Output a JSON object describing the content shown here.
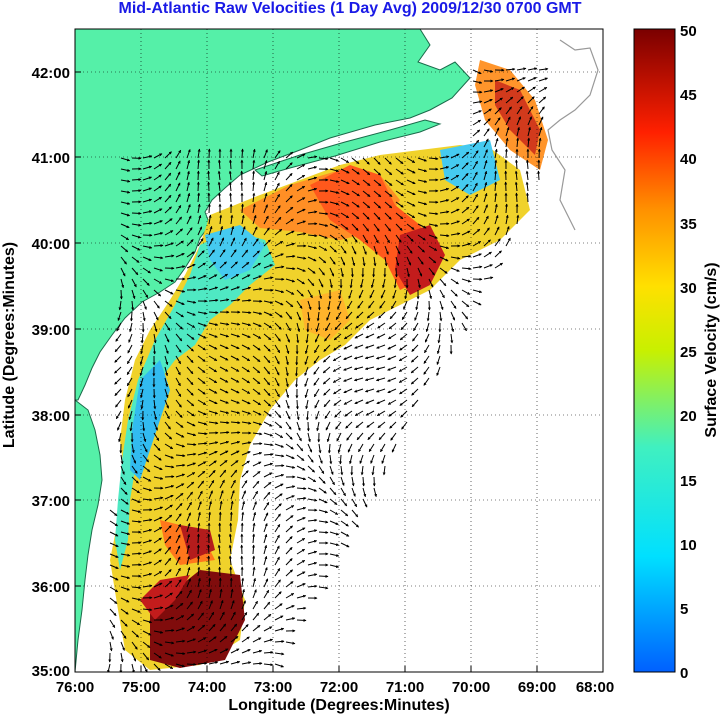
{
  "title": "Mid-Atlantic Raw Velocities (1 Day Avg) 2009/12/30 0700 GMT",
  "map": {
    "x_axis_label": "Longitude (Degrees:Minutes)",
    "y_axis_label": "Latitude (Degrees:Minutes)",
    "x_ticks": [
      "76:00",
      "75:00",
      "74:00",
      "73:00",
      "72:00",
      "71:00",
      "70:00",
      "69:00",
      "68:00"
    ],
    "y_ticks": [
      "42:00",
      "41:00",
      "40:00",
      "39:00",
      "38:00",
      "37:00",
      "36:00",
      "35:00"
    ],
    "lon_range": [
      -76,
      -68
    ],
    "lat_range": [
      35,
      42.5
    ],
    "land_color": "#55f0a8",
    "grid": "dotted"
  },
  "colorbar": {
    "label": "Surface Velocity (cm/s)",
    "ticks": [
      "50",
      "45",
      "40",
      "35",
      "30",
      "25",
      "20",
      "15",
      "10",
      "5",
      "0"
    ],
    "range": [
      0,
      50
    ],
    "colormap": "jet"
  }
}
